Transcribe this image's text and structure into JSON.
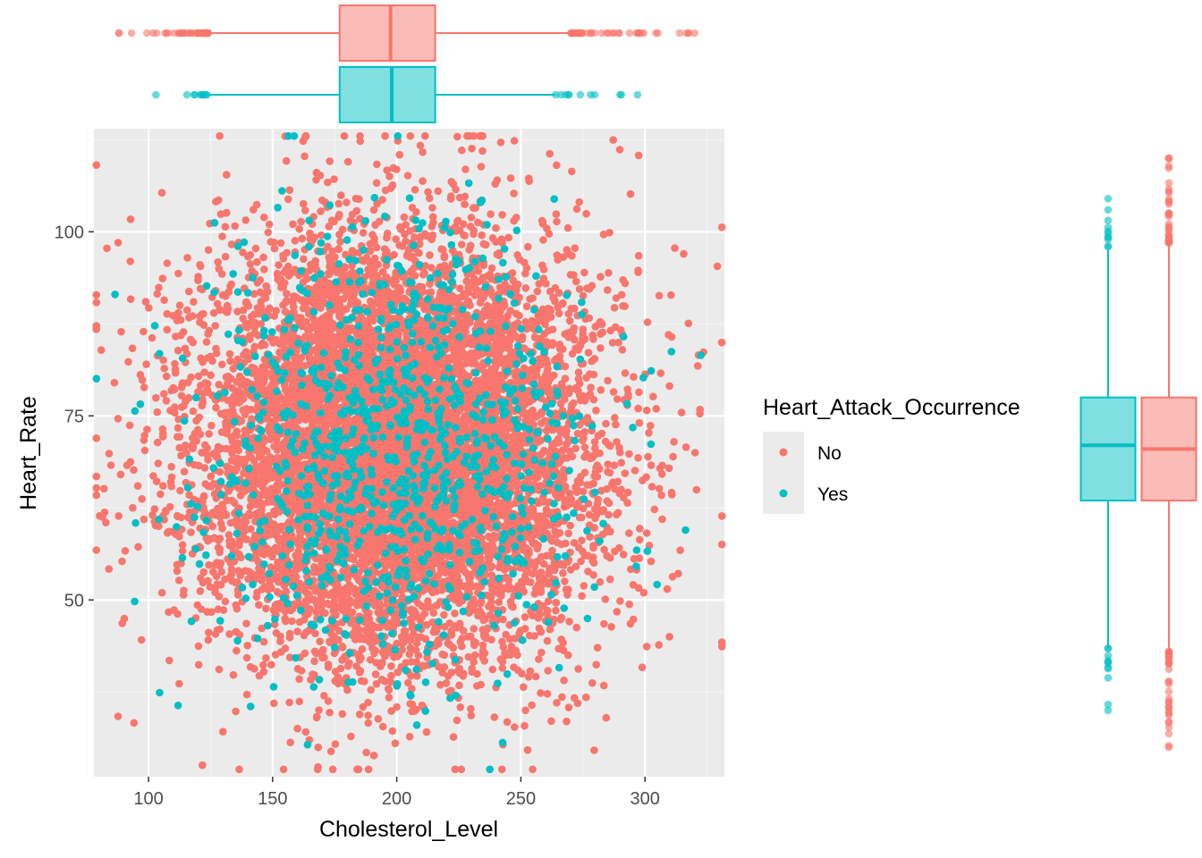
{
  "colors": {
    "panel_bg": "#EBEBEB",
    "grid_major": "#FFFFFF",
    "grid_minor": "#F5F5F5",
    "axis_text": "#4D4D4D",
    "no": "#F8766D",
    "yes": "#00BFC4"
  },
  "chart_data": {
    "type": "scatter",
    "xlabel": "Cholesterol_Level",
    "ylabel": "Heart_Rate",
    "xlim": [
      78,
      332
    ],
    "ylim": [
      26,
      114
    ],
    "x_ticks": [
      100,
      150,
      200,
      250,
      300
    ],
    "y_ticks": [
      50,
      75,
      100
    ],
    "grid": true,
    "legend": {
      "title": "Heart_Attack_Occurrence",
      "position": "right",
      "entries": [
        "No",
        "Yes"
      ]
    },
    "series": [
      {
        "name": "No",
        "color": "#F8766D",
        "n_points": 9000,
        "x_mean": 199.5,
        "x_sd": 39.5,
        "y_mean": 70.5,
        "y_sd": 14.3,
        "boxplot_x": {
          "q1": 177,
          "median": 197.5,
          "q3": 215.5,
          "whisker_low": 124,
          "whisker_high": 270,
          "min": 88,
          "max": 320
        },
        "boxplot_y": {
          "q1": 63.5,
          "median": 70.5,
          "q3": 77.5,
          "whisker_low": 43,
          "whisker_high": 98.5,
          "min": 30,
          "max": 110
        }
      },
      {
        "name": "Yes",
        "color": "#00BFC4",
        "n_points": 1000,
        "x_mean": 199,
        "x_sd": 39,
        "y_mean": 70.5,
        "y_sd": 14.5,
        "boxplot_x": {
          "q1": 177,
          "median": 198,
          "q3": 215.5,
          "whisker_low": 124,
          "whisker_high": 264,
          "min": 103,
          "max": 297
        },
        "boxplot_y": {
          "q1": 63.5,
          "median": 71,
          "q3": 77.5,
          "whisker_low": 43.5,
          "whisker_high": 97.5,
          "min": 35,
          "max": 104.5
        }
      }
    ]
  }
}
